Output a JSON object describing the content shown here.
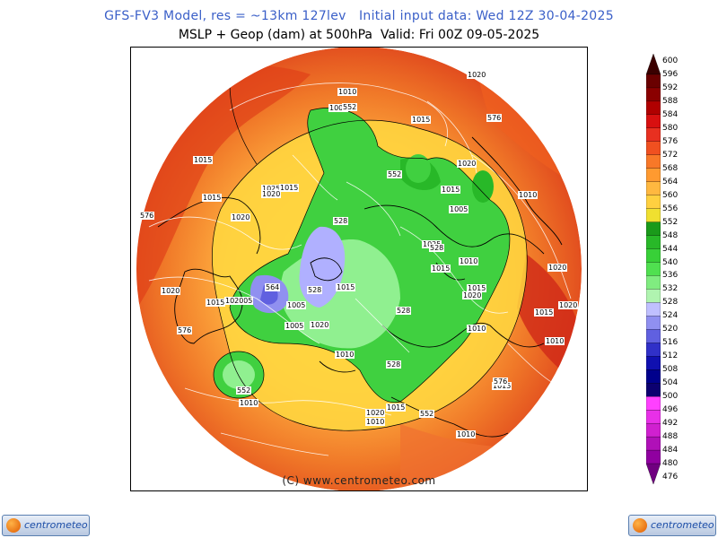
{
  "header": {
    "title_line1": "GFS-FV3 Model, res = ~13km 127lev   Initial input data: Wed 12Z 30-04-2025",
    "title_line2": "MSLP + Geop (dam) at 500hPa  Valid: Fri 00Z 09-05-2025"
  },
  "map": {
    "copyright": "(C) www.centrometeo.com",
    "pressure_labels": [
      "1010",
      "1005",
      "552",
      "1015",
      "1020",
      "576",
      "1015",
      "552",
      "1015",
      "1025",
      "1015",
      "1020",
      "1015",
      "576",
      "528",
      "1010",
      "1005",
      "1020",
      "1025",
      "528",
      "1015",
      "1010",
      "1015",
      "1020",
      "1020",
      "1005",
      "564",
      "528",
      "1015",
      "1010",
      "1020",
      "1015",
      "1005",
      "1020",
      "1005",
      "1010",
      "528",
      "1020",
      "528",
      "576",
      "1015",
      "1010",
      "552",
      "1010",
      "1015",
      "1020",
      "1015",
      "1010",
      "552",
      "1020",
      "1010",
      "576",
      "1020"
    ],
    "palette": {
      "deep_red": "#c01010",
      "red": "#e03020",
      "orange_red": "#f06020",
      "orange": "#f89030",
      "light_orange": "#ffb040",
      "yellow": "#ffd840",
      "green_dark": "#1fa81f",
      "green": "#40d040",
      "green_light": "#90f090",
      "lavender": "#a0a0ff",
      "blue": "#7070ee"
    }
  },
  "colorbar": {
    "levels": [
      "600",
      "596",
      "592",
      "588",
      "584",
      "580",
      "576",
      "572",
      "568",
      "564",
      "560",
      "556",
      "552",
      "548",
      "544",
      "540",
      "536",
      "532",
      "528",
      "524",
      "520",
      "516",
      "512",
      "508",
      "504",
      "500",
      "496",
      "492",
      "488",
      "484",
      "480",
      "476"
    ],
    "colors": [
      "#3a0000",
      "#6a0000",
      "#8a0000",
      "#b00000",
      "#d81010",
      "#e83020",
      "#f05020",
      "#f87828",
      "#ff9a30",
      "#ffb840",
      "#ffd040",
      "#f0e030",
      "#1a9a1a",
      "#28b828",
      "#38d038",
      "#50e050",
      "#80ec80",
      "#b0f4b0",
      "#c0c0ff",
      "#9090f0",
      "#6060e0",
      "#3030c8",
      "#1010b0",
      "#00008c",
      "#0c0070",
      "#ff40ff",
      "#e830e8",
      "#d020d0",
      "#b010b8",
      "#9000a0",
      "#700080"
    ]
  },
  "logos": {
    "left_text": "centrometeo",
    "right_text": "centrometeo"
  }
}
